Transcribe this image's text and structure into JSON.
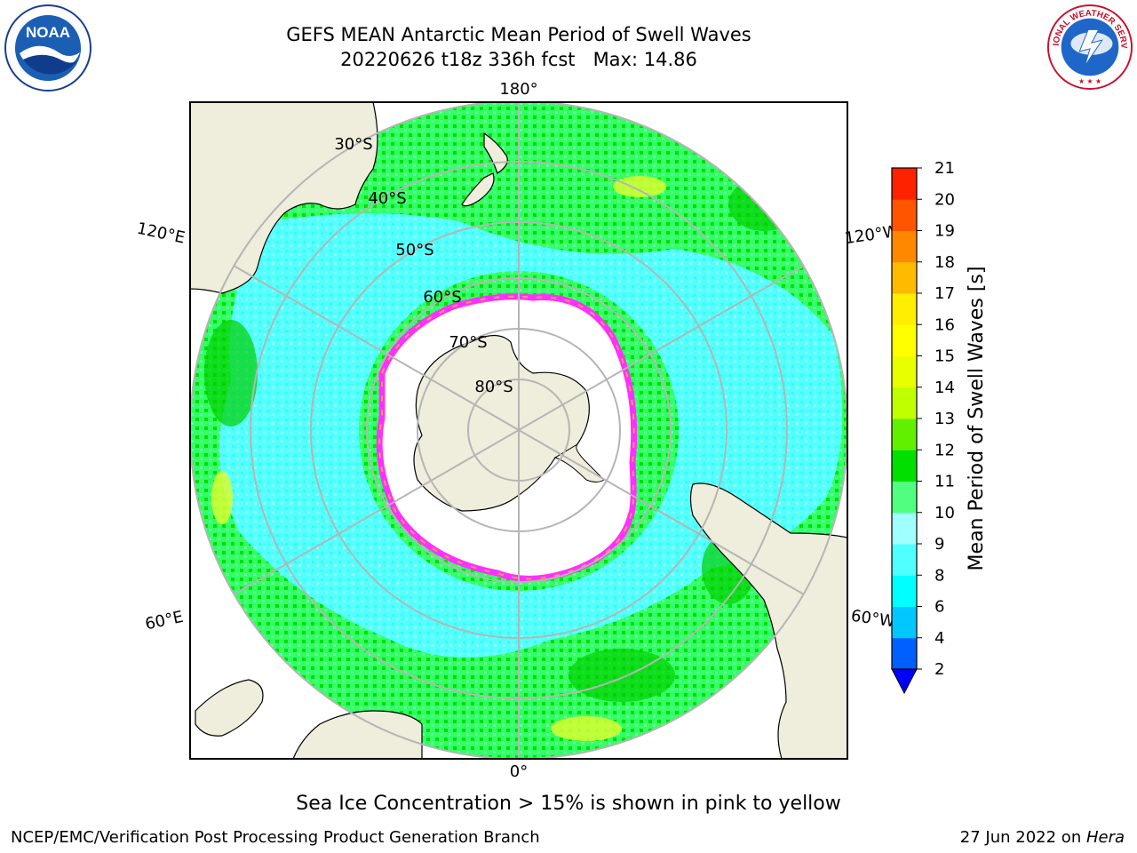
{
  "header": {
    "title_line1": "GEFS MEAN Antarctic Mean Period of Swell Waves",
    "title_line2": "20220626 t18z 336h fcst   Max: 14.86"
  },
  "logos": {
    "left": "noaa-logo",
    "left_text": "NOAA",
    "right": "national-weather-service-logo",
    "right_text": "NATIONAL WEATHER SERVICE"
  },
  "map": {
    "projection": "south-polar-stereographic",
    "longitude_labels": {
      "top": "180°",
      "bottom": "0°",
      "left_upper": "120°E",
      "left_lower": "60°E",
      "right_upper": "120°W",
      "right_lower": "60°W"
    },
    "latitude_labels": [
      "30°S",
      "40°S",
      "50°S",
      "60°S",
      "70°S",
      "80°S"
    ],
    "colors": {
      "land": "#efeddb",
      "ice_free_zone": "#ffffff",
      "ice_edge": "#ff30ff",
      "grid": "#b5b5b5"
    }
  },
  "colorbar": {
    "label": "Mean Period of Swell Waves [s]",
    "ticks": [
      "2",
      "4",
      "6",
      "8",
      "9",
      "10",
      "11",
      "12",
      "13",
      "14",
      "15",
      "16",
      "17",
      "18",
      "19",
      "20",
      "21"
    ],
    "colors": [
      "#0060ff",
      "#00c8ff",
      "#00ffff",
      "#50ffff",
      "#a0ffff",
      "#50ff80",
      "#00e000",
      "#60f000",
      "#c0ff00",
      "#e8ff00",
      "#ffff00",
      "#ffee00",
      "#ffbb00",
      "#ff8800",
      "#ff5500",
      "#ff2200"
    ],
    "extend_color": "#0000ff"
  },
  "footer": {
    "note": "Sea Ice Concentration > 15% is shown in pink to yellow",
    "credit": "NCEP/EMC/Verification Post Processing Product Generation Branch",
    "date": "27 Jun 2022 on ",
    "machine": "Hera"
  }
}
